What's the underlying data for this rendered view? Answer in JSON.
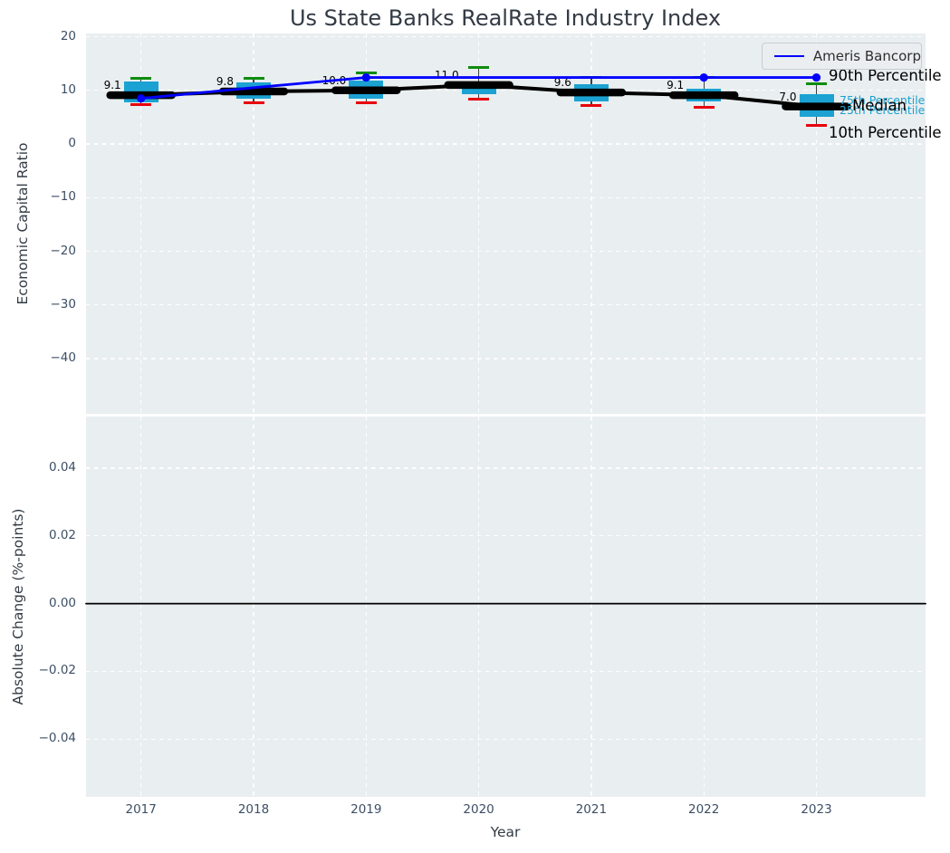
{
  "figure": {
    "title": "Us State Banks RealRate Industry Index",
    "background_color": "#ffffff",
    "axes_background_color": "#e9eef0",
    "grid_color": "#ffffff",
    "tick_color": "#3d4f65"
  },
  "chart_data": [
    {
      "type": "boxplot",
      "title": "Us State Banks RealRate Industry Index",
      "ylabel": "Economic Capital Ratio",
      "ylim": [
        -50.3,
        20.6
      ],
      "grid": true,
      "legend_position": "upper right",
      "yticks": {
        "values": [
          20,
          10,
          0,
          -10,
          -20,
          -30,
          -40
        ],
        "labels": [
          "20",
          "10",
          "0",
          "−10",
          "−20",
          "−30",
          "−40"
        ]
      },
      "categories": [
        "2017",
        "2018",
        "2019",
        "2020",
        "2021",
        "2022",
        "2023"
      ],
      "legend": {
        "label": "Ameris Bancorp",
        "line_color": "#0000ff"
      },
      "company_series": {
        "name": "Ameris Bancorp",
        "color": "#0000ff",
        "values": [
          8.5,
          10.5,
          12.4,
          12.4,
          12.4,
          12.4,
          12.4
        ],
        "marker_years": [
          "2017",
          "2019",
          "2022",
          "2023"
        ]
      },
      "boxplot_series": {
        "p90": {
          "label": "90th Percentile",
          "color": "#0e8c0e",
          "values": [
            12.2,
            12.3,
            13.3,
            14.3,
            12.4,
            12.4,
            11.2
          ]
        },
        "p75": {
          "label": "75th Percentile",
          "color": "#1ba2d2",
          "values": [
            11.7,
            11.4,
            11.8,
            11.5,
            11.2,
            10.3,
            9.3
          ]
        },
        "median": {
          "label": "Median",
          "color": "#000000",
          "values": [
            9.1,
            9.8,
            10.0,
            11.0,
            9.6,
            9.1,
            7.0
          ]
        },
        "p25": {
          "label": "25th Percentile",
          "color": "#1ba2d2",
          "values": [
            7.8,
            8.4,
            8.4,
            9.3,
            7.9,
            7.9,
            5.1
          ]
        },
        "p10": {
          "label": "10th Percentile",
          "color": "#e8000b",
          "values": [
            7.4,
            7.7,
            7.7,
            8.4,
            7.1,
            6.8,
            3.4
          ]
        }
      },
      "median_annotations": [
        "9.1",
        "9.8",
        "10.0",
        "11.0",
        "9.6",
        "9.1",
        "7.0"
      ],
      "right_labels": [
        {
          "text": "90th Percentile",
          "color": "#000000"
        },
        {
          "text": "75th Percentile",
          "color": "#1ba2d2"
        },
        {
          "text": "25th Percentile",
          "color": "#1ba2d2"
        },
        {
          "text": "Median",
          "color": "#000000"
        },
        {
          "text": "10th Percentile",
          "color": "#000000"
        }
      ]
    },
    {
      "type": "line",
      "ylabel": "Absolute Change (%-points)",
      "xlabel": "Year",
      "ylim": [
        -0.057,
        0.0552
      ],
      "grid": true,
      "yticks": {
        "values": [
          0.04,
          0.02,
          0,
          -0.02,
          -0.04
        ],
        "labels": [
          "0.04",
          "0.02",
          "0.00",
          "−0.02",
          "−0.04"
        ]
      },
      "categories": [
        "2017",
        "2018",
        "2019",
        "2020",
        "2021",
        "2022",
        "2023"
      ],
      "series": [],
      "zero_line": {
        "value": 0.0,
        "color": "#000000"
      }
    }
  ]
}
